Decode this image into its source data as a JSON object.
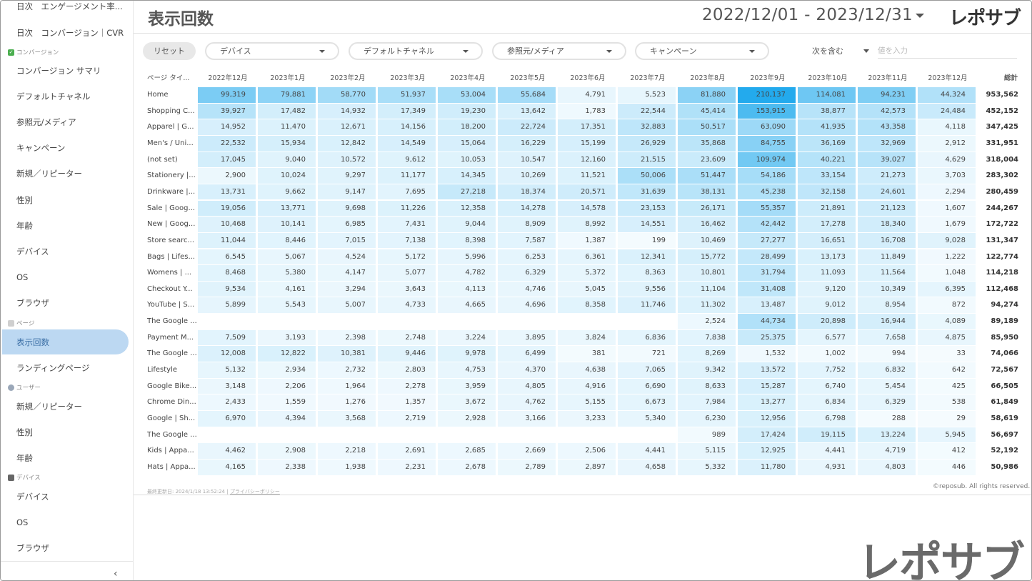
{
  "sidebar": {
    "items": [
      {
        "id": "daily-engagement",
        "label": "日次　エンゲージメント率..."
      },
      {
        "id": "daily-conversion",
        "label": "日次　コンバージョン｜CVR"
      },
      {
        "id": "conversion-summary",
        "label": "コンバージョン サマリ"
      },
      {
        "id": "default-channel",
        "label": "デフォルトチャネル"
      },
      {
        "id": "source-medium",
        "label": "参照元/メディア"
      },
      {
        "id": "campaign",
        "label": "キャンペーン"
      },
      {
        "id": "new-returning",
        "label": "新規／リピーター"
      },
      {
        "id": "gender",
        "label": "性別"
      },
      {
        "id": "age",
        "label": "年齢"
      },
      {
        "id": "device",
        "label": "デバイス"
      },
      {
        "id": "os",
        "label": "OS"
      },
      {
        "id": "browser",
        "label": "ブラウザ"
      },
      {
        "id": "pageviews",
        "label": "表示回数"
      },
      {
        "id": "landing-page",
        "label": "ランディングページ"
      },
      {
        "id": "user-new-returning",
        "label": "新規／リピーター"
      },
      {
        "id": "user-gender",
        "label": "性別"
      },
      {
        "id": "user-age",
        "label": "年齢"
      },
      {
        "id": "device-device",
        "label": "デバイス"
      },
      {
        "id": "device-os",
        "label": "OS"
      },
      {
        "id": "device-browser",
        "label": "ブラウザ"
      }
    ],
    "sections": [
      {
        "label": "コンバージョン",
        "icon": "check-icon",
        "color": "#4caf50"
      },
      {
        "label": "ページ",
        "icon": "page-icon",
        "color": "#bbbbbb"
      },
      {
        "label": "ユーザー",
        "icon": "user-icon",
        "color": "#9aa7b8"
      },
      {
        "label": "デバイス",
        "icon": "monitor-icon",
        "color": "#666666"
      }
    ],
    "collapse_icon": "‹"
  },
  "header": {
    "title": "表示回数",
    "date_range": "2022/12/01 - 2023/12/31",
    "logo": "レポサブ"
  },
  "filters": {
    "reset_label": "リセット",
    "items": [
      "デバイス",
      "デフォルトチャネル",
      "参照元/メディア",
      "キャンペーン"
    ],
    "include_label": "次を含む",
    "value_placeholder": "値を入力"
  },
  "table": {
    "first_header": "ページ タイ...",
    "months": [
      "2022年12月",
      "2023年1月",
      "2023年2月",
      "2023年3月",
      "2023年4月",
      "2023年5月",
      "2023年6月",
      "2023年7月",
      "2023年8月",
      "2023年9月",
      "2023年10月",
      "2023年11月",
      "2023年12月"
    ],
    "total_header": "総計",
    "rows": [
      {
        "label": "Home",
        "values": [
          99319,
          79881,
          58770,
          51937,
          53004,
          55684,
          4791,
          5523,
          81880,
          210137,
          114081,
          94231,
          44324
        ],
        "total": 953562
      },
      {
        "label": "Shopping C...",
        "values": [
          39927,
          17482,
          14932,
          17349,
          19230,
          13642,
          1783,
          22544,
          45414,
          153915,
          38877,
          42573,
          24484
        ],
        "total": 452152
      },
      {
        "label": "Apparel | G...",
        "values": [
          14952,
          11470,
          12671,
          14156,
          18200,
          22724,
          17351,
          32883,
          50517,
          63090,
          41935,
          43358,
          4118
        ],
        "total": 347425
      },
      {
        "label": "Men's / Uni...",
        "values": [
          22532,
          15934,
          12842,
          14549,
          15064,
          16229,
          15199,
          26929,
          35868,
          84755,
          36169,
          32969,
          2912
        ],
        "total": 331951
      },
      {
        "label": "(not set)",
        "values": [
          17045,
          9040,
          10572,
          9612,
          10053,
          10547,
          12160,
          21515,
          23609,
          109974,
          40221,
          39027,
          4629
        ],
        "total": 318004
      },
      {
        "label": "Stationery |...",
        "values": [
          2900,
          10024,
          9297,
          11177,
          14345,
          10269,
          11521,
          50006,
          51447,
          54186,
          33154,
          21273,
          3703
        ],
        "total": 283302
      },
      {
        "label": "Drinkware |...",
        "values": [
          13731,
          9662,
          9147,
          7695,
          27218,
          18374,
          20571,
          31639,
          38131,
          45238,
          32158,
          24601,
          2294
        ],
        "total": 280459
      },
      {
        "label": "Sale | Goog...",
        "values": [
          19056,
          13771,
          9698,
          11226,
          12358,
          14278,
          14578,
          23153,
          26171,
          55357,
          21891,
          21123,
          1607
        ],
        "total": 244267
      },
      {
        "label": "New | Goog...",
        "values": [
          10468,
          10141,
          6985,
          7431,
          9044,
          8909,
          8992,
          14551,
          16462,
          42442,
          17278,
          18340,
          1679
        ],
        "total": 172722
      },
      {
        "label": "Store searc...",
        "values": [
          11044,
          8446,
          7015,
          7138,
          8398,
          7587,
          1387,
          199,
          10469,
          27277,
          16651,
          16708,
          9028
        ],
        "total": 131347
      },
      {
        "label": "Bags | Lifes...",
        "values": [
          6545,
          5067,
          4524,
          5172,
          5996,
          6253,
          6361,
          12341,
          15772,
          28499,
          13173,
          11849,
          1222
        ],
        "total": 122774
      },
      {
        "label": "Womens | ...",
        "values": [
          8468,
          5380,
          4147,
          5077,
          4782,
          6329,
          5372,
          8363,
          10801,
          31794,
          11093,
          11564,
          1048
        ],
        "total": 114218
      },
      {
        "label": "Checkout Y...",
        "values": [
          9534,
          4161,
          3294,
          3643,
          4113,
          4746,
          5045,
          9556,
          11104,
          31408,
          9120,
          10349,
          6395
        ],
        "total": 112468
      },
      {
        "label": "YouTube | S...",
        "values": [
          5899,
          5543,
          5007,
          4733,
          4665,
          4696,
          8358,
          11746,
          11302,
          13487,
          9012,
          8954,
          872
        ],
        "total": 94274
      },
      {
        "label": "The Google ...",
        "values": [
          null,
          null,
          null,
          null,
          null,
          null,
          null,
          null,
          2524,
          44734,
          20898,
          16944,
          4089
        ],
        "total": 89189
      },
      {
        "label": "Payment M...",
        "values": [
          7509,
          3193,
          2398,
          2748,
          3224,
          3895,
          3824,
          6836,
          7838,
          25375,
          6577,
          7658,
          4875
        ],
        "total": 85950
      },
      {
        "label": "The Google ...",
        "values": [
          12008,
          12822,
          10381,
          9446,
          9978,
          6499,
          381,
          721,
          8269,
          1532,
          1002,
          994,
          33
        ],
        "total": 74066
      },
      {
        "label": "Lifestyle",
        "values": [
          5132,
          2934,
          2732,
          2803,
          4753,
          4370,
          4638,
          7065,
          9342,
          13572,
          7752,
          6832,
          642
        ],
        "total": 72567
      },
      {
        "label": "Google Bike...",
        "values": [
          3148,
          2206,
          1964,
          2278,
          3959,
          4805,
          4916,
          6690,
          8633,
          15287,
          6740,
          5454,
          425
        ],
        "total": 66505
      },
      {
        "label": "Chrome Din...",
        "values": [
          2433,
          1559,
          1276,
          1357,
          3672,
          4762,
          5155,
          6673,
          7984,
          13277,
          6834,
          6329,
          538
        ],
        "total": 61849
      },
      {
        "label": "Google | Sh...",
        "values": [
          6970,
          4394,
          3568,
          2719,
          2928,
          3166,
          3233,
          5340,
          6230,
          12956,
          6798,
          288,
          29
        ],
        "total": 58619
      },
      {
        "label": "The Google ...",
        "values": [
          null,
          null,
          null,
          null,
          null,
          null,
          null,
          null,
          989,
          17424,
          19115,
          13224,
          5945
        ],
        "total": 56697
      },
      {
        "label": "Kids | Appa...",
        "values": [
          4462,
          2908,
          2218,
          2691,
          2685,
          2669,
          2506,
          4441,
          5115,
          12925,
          4441,
          4719,
          412
        ],
        "total": 52192
      },
      {
        "label": "Hats | Appa...",
        "values": [
          4165,
          2338,
          1938,
          2231,
          2678,
          2789,
          2897,
          4658,
          5332,
          11780,
          4931,
          4803,
          446
        ],
        "total": 50986
      }
    ],
    "heat_color": "#1aa7ec"
  },
  "footer": {
    "updated": "最終更新日: 2024/1/18 13:52:24",
    "privacy": "プライバシーポリシー",
    "copyright": "©reposub. All rights reserved.",
    "big_logo": "レポサブ"
  }
}
